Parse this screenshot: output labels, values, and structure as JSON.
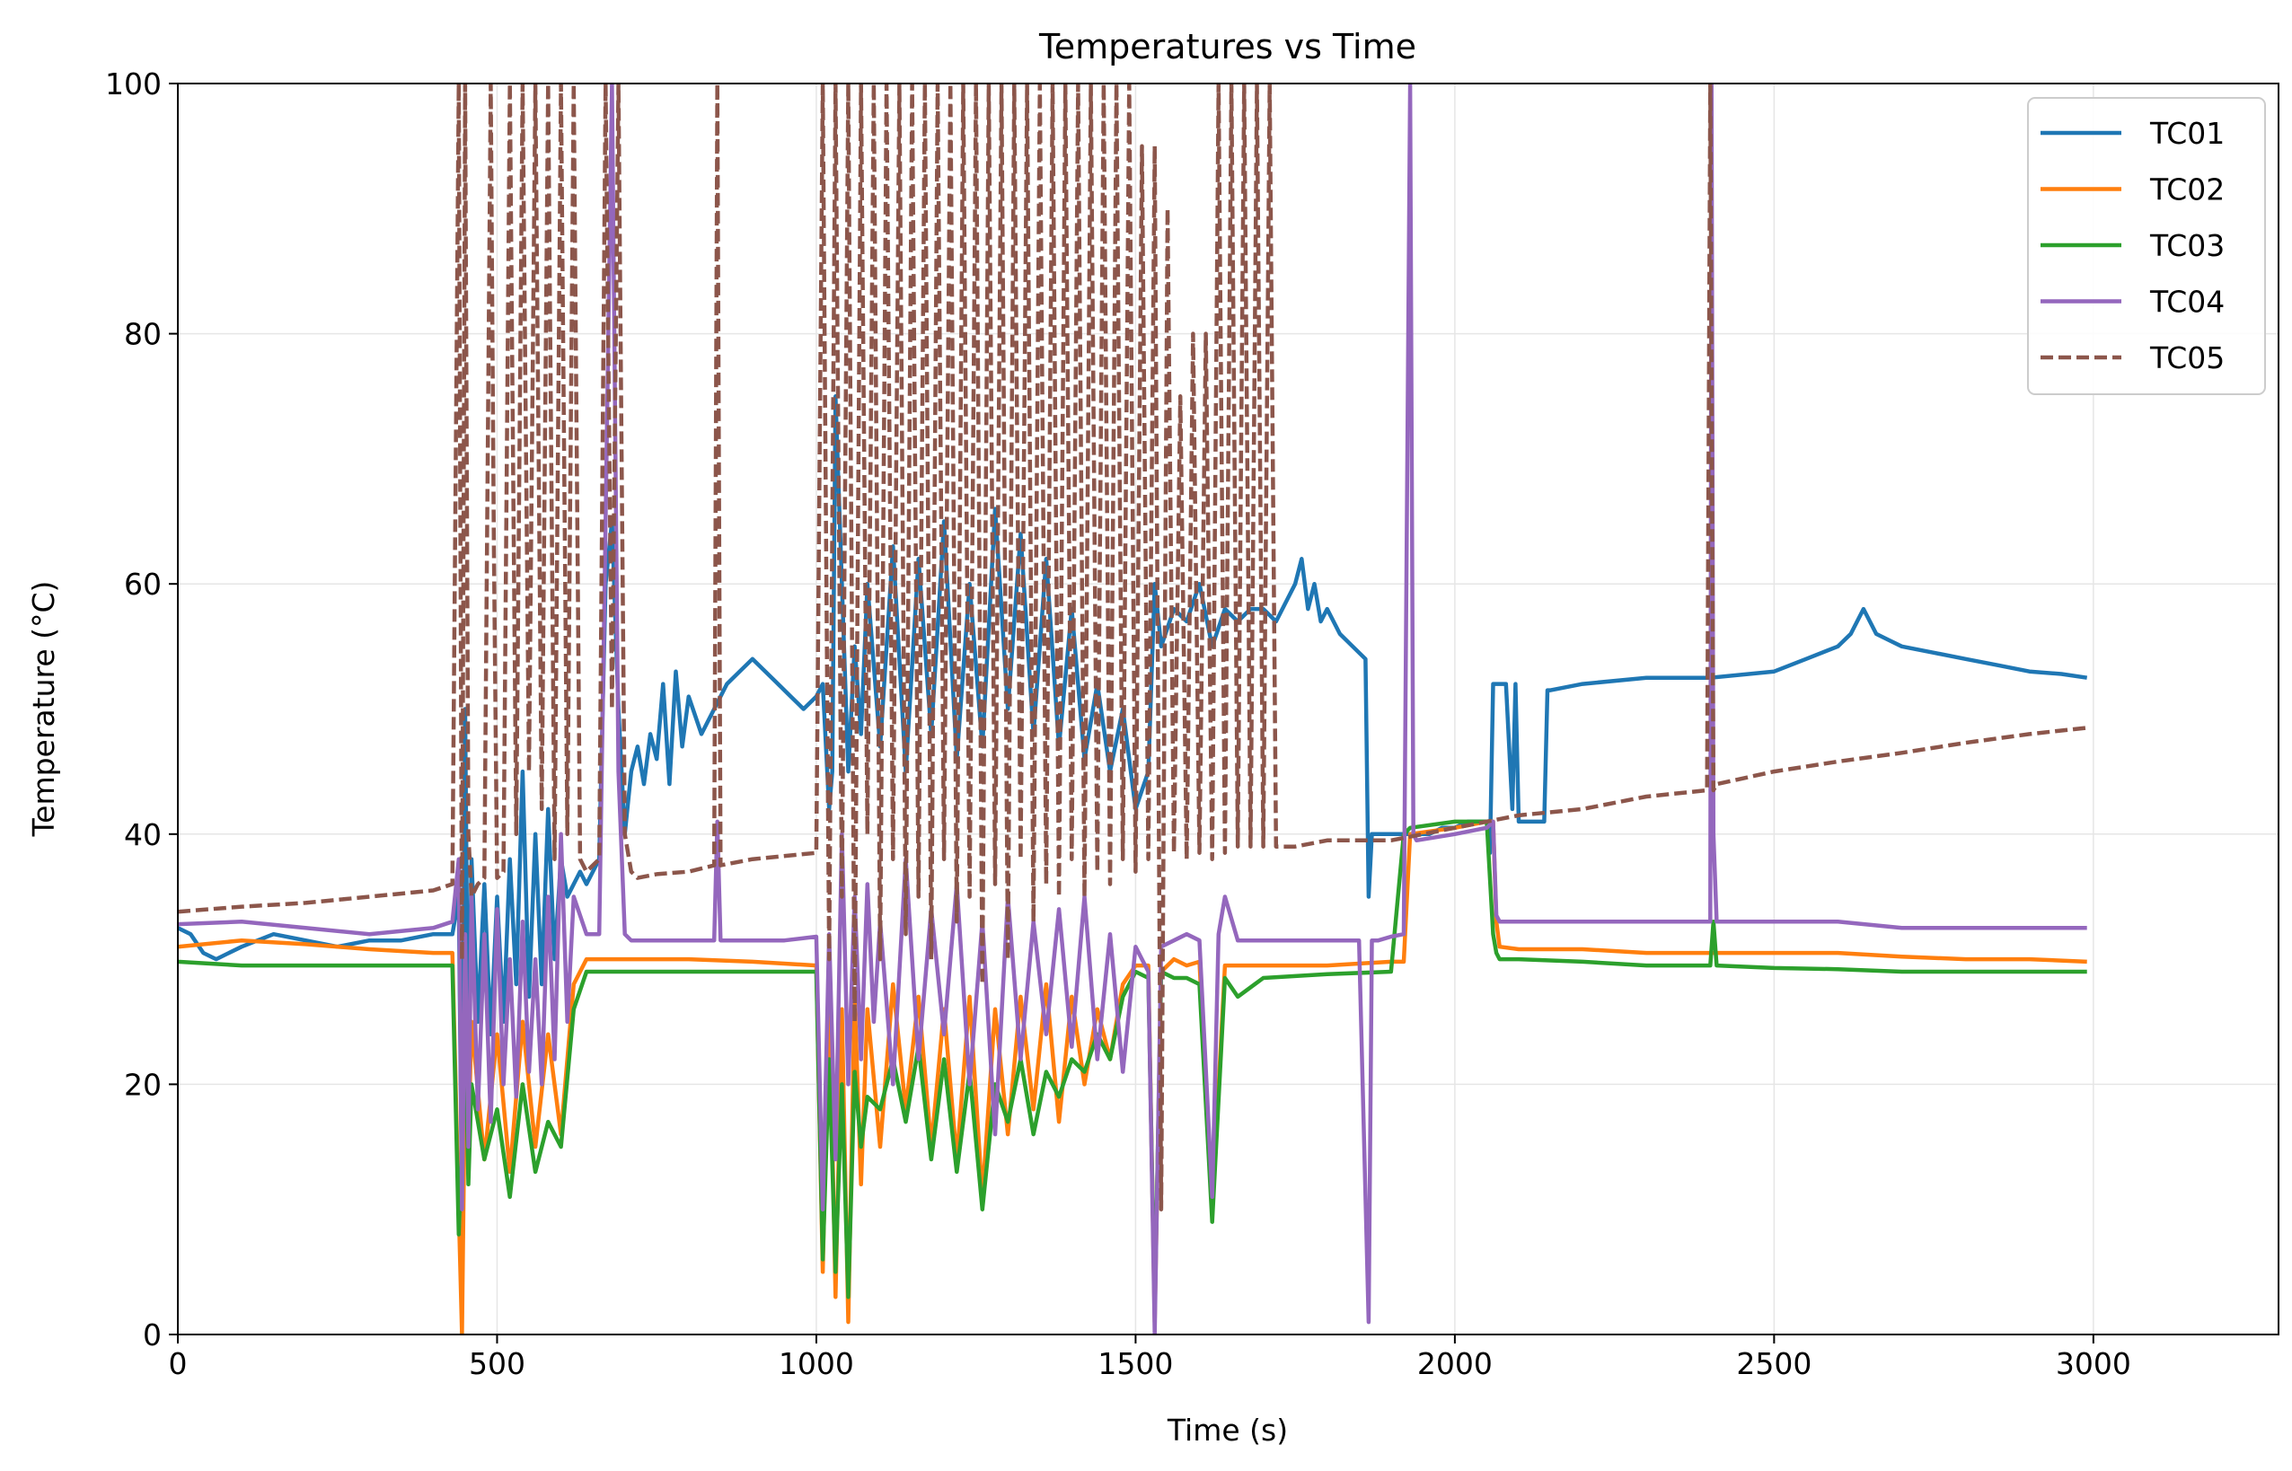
{
  "chart_data": {
    "type": "line",
    "title": "Temperatures vs Time",
    "xlabel": "Time (s)",
    "ylabel": "Temperature (°C)",
    "xlim": [
      0,
      3290
    ],
    "ylim": [
      0,
      100
    ],
    "xticks": [
      0,
      500,
      1000,
      1500,
      2000,
      2500,
      3000
    ],
    "yticks": [
      0,
      20,
      40,
      60,
      80,
      100
    ],
    "grid": true,
    "legend_position": "top-right",
    "series": [
      {
        "name": "TC01",
        "color": "#1f77b4",
        "dash": "solid",
        "x": [
          0,
          20,
          40,
          60,
          80,
          100,
          150,
          200,
          250,
          300,
          350,
          400,
          430,
          440,
          445,
          450,
          455,
          460,
          470,
          480,
          490,
          500,
          510,
          520,
          530,
          540,
          550,
          560,
          570,
          580,
          590,
          600,
          610,
          620,
          630,
          640,
          650,
          660,
          670,
          680,
          690,
          700,
          710,
          720,
          730,
          740,
          750,
          760,
          770,
          780,
          790,
          800,
          820,
          840,
          860,
          880,
          900,
          920,
          940,
          960,
          980,
          1000,
          1010,
          1020,
          1025,
          1030,
          1040,
          1050,
          1060,
          1070,
          1080,
          1100,
          1120,
          1140,
          1160,
          1180,
          1200,
          1220,
          1240,
          1260,
          1280,
          1300,
          1320,
          1340,
          1360,
          1380,
          1400,
          1420,
          1440,
          1460,
          1480,
          1500,
          1520,
          1530,
          1540,
          1560,
          1580,
          1600,
          1620,
          1640,
          1660,
          1680,
          1700,
          1720,
          1740,
          1750,
          1760,
          1770,
          1780,
          1790,
          1800,
          1820,
          1840,
          1860,
          1865,
          1870,
          1900,
          1920,
          1940,
          1960,
          1980,
          2000,
          2020,
          2040,
          2050,
          2055,
          2060,
          2080,
          2090,
          2095,
          2100,
          2120,
          2140,
          2145,
          2150,
          2200,
          2300,
          2400,
          2500,
          2550,
          2600,
          2620,
          2640,
          2650,
          2660,
          2680,
          2700,
          2750,
          2800,
          2850,
          2900,
          2950,
          2990
        ],
        "y": [
          32.5,
          32.0,
          30.5,
          30.0,
          30.5,
          31.0,
          32.0,
          31.5,
          31.0,
          31.5,
          31.5,
          32.0,
          32.0,
          35.0,
          10.0,
          50.0,
          20.0,
          38.0,
          25.0,
          36.0,
          24.0,
          35.0,
          25.0,
          38.0,
          28.0,
          45.0,
          27.0,
          40.0,
          28.0,
          42.0,
          30.0,
          38.0,
          35.0,
          36.0,
          37.0,
          36.0,
          37.0,
          38.0,
          60.0,
          65.0,
          50.0,
          40.0,
          45.0,
          47.0,
          44.0,
          48.0,
          46.0,
          52.0,
          44.0,
          53.0,
          47.0,
          51.0,
          48.0,
          50.0,
          52.0,
          53.0,
          54.0,
          53.0,
          52.0,
          51.0,
          50.0,
          51.0,
          52.0,
          42.0,
          45.0,
          75.0,
          60.0,
          45.0,
          55.0,
          48.0,
          60.0,
          47.0,
          63.0,
          45.0,
          62.0,
          48.0,
          65.0,
          46.0,
          60.0,
          47.0,
          66.0,
          50.0,
          64.0,
          48.0,
          62.0,
          47.0,
          58.0,
          46.0,
          52.0,
          45.0,
          50.0,
          42.0,
          45.0,
          60.0,
          55.0,
          58.0,
          57.0,
          60.0,
          55.0,
          58.0,
          57.0,
          58.0,
          58.0,
          57.0,
          59.0,
          60.0,
          62.0,
          58.0,
          60.0,
          57.0,
          58.0,
          56.0,
          55.0,
          54.0,
          35.0,
          40.0,
          40.0,
          40.0,
          40.0,
          40.0,
          40.5,
          40.5,
          41.0,
          41.0,
          41.0,
          38.5,
          52.0,
          52.0,
          42.0,
          52.0,
          41.0,
          41.0,
          41.0,
          51.5,
          51.5,
          52.0,
          52.5,
          52.5,
          53.0,
          54.0,
          55.0,
          56.0,
          58.0,
          57.0,
          56.0,
          55.5,
          55.0,
          54.5,
          54.0,
          53.5,
          53.0,
          52.8,
          52.5
        ]
      },
      {
        "name": "TC02",
        "color": "#ff7f0e",
        "dash": "solid",
        "x": [
          0,
          100,
          200,
          300,
          400,
          430,
          440,
          445,
          450,
          455,
          460,
          480,
          500,
          520,
          540,
          560,
          580,
          600,
          620,
          640,
          660,
          680,
          700,
          750,
          800,
          900,
          1000,
          1010,
          1020,
          1030,
          1040,
          1050,
          1060,
          1070,
          1080,
          1100,
          1120,
          1140,
          1160,
          1180,
          1200,
          1220,
          1240,
          1260,
          1280,
          1300,
          1320,
          1340,
          1360,
          1380,
          1400,
          1420,
          1440,
          1460,
          1480,
          1500,
          1520,
          1530,
          1540,
          1560,
          1580,
          1600,
          1620,
          1640,
          1700,
          1800,
          1900,
          1920,
          1930,
          2000,
          2050,
          2060,
          2065,
          2070,
          2100,
          2200,
          2300,
          2400,
          2500,
          2600,
          2700,
          2800,
          2900,
          2990
        ],
        "y": [
          31.0,
          31.5,
          31.2,
          30.8,
          30.5,
          30.5,
          10.0,
          0.0,
          22.0,
          15.0,
          25.0,
          14.0,
          24.0,
          13.0,
          25.0,
          15.0,
          24.0,
          16.0,
          28.0,
          30.0,
          30.0,
          30.0,
          30.0,
          30.0,
          30.0,
          29.8,
          29.5,
          5.0,
          28.0,
          3.0,
          26.0,
          1.0,
          27.0,
          12.0,
          26.0,
          15.0,
          28.0,
          18.0,
          27.0,
          15.0,
          26.0,
          14.0,
          27.0,
          11.0,
          26.0,
          16.0,
          27.0,
          18.0,
          28.0,
          17.0,
          27.0,
          20.0,
          26.0,
          22.0,
          28.0,
          29.5,
          29.5,
          1.0,
          29.0,
          30.0,
          29.5,
          29.8,
          10.0,
          29.5,
          29.5,
          29.5,
          29.8,
          29.8,
          40.0,
          40.5,
          41.0,
          41.0,
          33.0,
          31.0,
          30.8,
          30.8,
          30.5,
          30.5,
          30.5,
          30.5,
          30.2,
          30.0,
          30.0,
          29.8
        ]
      },
      {
        "name": "TC03",
        "color": "#2ca02c",
        "dash": "solid",
        "x": [
          0,
          100,
          200,
          300,
          400,
          430,
          440,
          445,
          450,
          455,
          460,
          480,
          500,
          520,
          540,
          560,
          580,
          600,
          620,
          640,
          660,
          680,
          700,
          750,
          800,
          900,
          1000,
          1010,
          1020,
          1030,
          1040,
          1050,
          1060,
          1070,
          1080,
          1100,
          1120,
          1140,
          1160,
          1180,
          1200,
          1220,
          1240,
          1260,
          1280,
          1300,
          1320,
          1340,
          1360,
          1380,
          1400,
          1420,
          1440,
          1460,
          1480,
          1500,
          1520,
          1530,
          1540,
          1560,
          1580,
          1600,
          1620,
          1640,
          1660,
          1700,
          1800,
          1900,
          1920,
          1930,
          2000,
          2050,
          2060,
          2065,
          2070,
          2100,
          2200,
          2300,
          2400,
          2405,
          2410,
          2500,
          2600,
          2700,
          2800,
          2900,
          2990
        ],
        "y": [
          29.8,
          29.5,
          29.5,
          29.5,
          29.5,
          29.5,
          8.0,
          15.0,
          25.0,
          12.0,
          20.0,
          14.0,
          18.0,
          11.0,
          20.0,
          13.0,
          17.0,
          15.0,
          26.0,
          29.0,
          29.0,
          29.0,
          29.0,
          29.0,
          29.0,
          29.0,
          29.0,
          6.0,
          22.0,
          5.0,
          20.0,
          3.0,
          21.0,
          15.0,
          19.0,
          18.0,
          22.0,
          17.0,
          23.0,
          14.0,
          22.0,
          13.0,
          21.0,
          10.0,
          20.0,
          17.0,
          22.0,
          16.0,
          21.0,
          19.0,
          22.0,
          21.0,
          24.0,
          22.0,
          27.0,
          29.0,
          28.5,
          2.0,
          29.0,
          28.5,
          28.5,
          28.0,
          9.0,
          28.5,
          27.0,
          28.5,
          28.8,
          29.0,
          40.0,
          40.5,
          41.0,
          41.0,
          32.0,
          30.5,
          30.0,
          30.0,
          29.8,
          29.5,
          29.5,
          33.0,
          29.5,
          29.3,
          29.2,
          29.0,
          29.0,
          29.0,
          29.0
        ]
      },
      {
        "name": "TC04",
        "color": "#9467bd",
        "dash": "solid",
        "x": [
          0,
          100,
          200,
          300,
          400,
          430,
          440,
          445,
          450,
          455,
          460,
          470,
          480,
          490,
          500,
          510,
          520,
          530,
          540,
          550,
          560,
          570,
          580,
          590,
          600,
          610,
          620,
          640,
          660,
          670,
          680,
          690,
          700,
          710,
          720,
          750,
          800,
          840,
          845,
          850,
          900,
          950,
          1000,
          1010,
          1020,
          1030,
          1040,
          1050,
          1060,
          1070,
          1080,
          1090,
          1100,
          1120,
          1140,
          1160,
          1180,
          1200,
          1220,
          1240,
          1260,
          1280,
          1300,
          1320,
          1340,
          1360,
          1380,
          1400,
          1420,
          1440,
          1460,
          1480,
          1500,
          1520,
          1530,
          1540,
          1560,
          1580,
          1600,
          1620,
          1630,
          1640,
          1660,
          1700,
          1750,
          1800,
          1850,
          1865,
          1870,
          1880,
          1900,
          1920,
          1930,
          1935,
          1940,
          2000,
          2050,
          2060,
          2065,
          2070,
          2100,
          2200,
          2300,
          2400,
          2402,
          2405,
          2410,
          2500,
          2550,
          2600,
          2700,
          2800,
          2900,
          2990
        ],
        "y": [
          32.8,
          33.0,
          32.5,
          32.0,
          32.5,
          33.0,
          38.0,
          10.0,
          32.0,
          15.0,
          35.0,
          18.0,
          32.0,
          17.0,
          34.0,
          20.0,
          30.0,
          19.0,
          33.0,
          21.0,
          30.0,
          20.0,
          35.0,
          22.0,
          40.0,
          25.0,
          35.0,
          32.0,
          32.0,
          65.0,
          100.0,
          45.0,
          32.0,
          31.5,
          31.5,
          31.5,
          31.5,
          31.5,
          41.0,
          31.5,
          31.5,
          31.5,
          31.8,
          10.0,
          32.0,
          14.0,
          40.0,
          20.0,
          35.0,
          22.0,
          36.0,
          25.0,
          33.0,
          20.0,
          38.0,
          22.0,
          34.0,
          24.0,
          36.0,
          20.0,
          33.0,
          16.0,
          35.0,
          22.0,
          33.0,
          24.0,
          34.0,
          23.0,
          35.0,
          22.0,
          32.0,
          21.0,
          31.0,
          29.0,
          0.0,
          31.0,
          31.5,
          32.0,
          31.5,
          11.0,
          32.0,
          35.0,
          31.5,
          31.5,
          31.5,
          31.5,
          31.5,
          1.0,
          31.5,
          31.5,
          31.8,
          32.0,
          100.0,
          40.0,
          39.5,
          40.0,
          40.5,
          41.0,
          33.5,
          33.0,
          33.0,
          33.0,
          33.0,
          33.0,
          100.0,
          40.0,
          33.0,
          33.0,
          33.0,
          33.0,
          32.5,
          32.5,
          32.5,
          32.5
        ]
      },
      {
        "name": "TC05",
        "color": "#8c564b",
        "dash": "dashed",
        "x": [
          0,
          100,
          200,
          300,
          400,
          430,
          440,
          445,
          450,
          455,
          460,
          470,
          480,
          490,
          495,
          500,
          510,
          520,
          530,
          540,
          550,
          560,
          570,
          580,
          590,
          600,
          610,
          620,
          630,
          640,
          650,
          660,
          670,
          680,
          690,
          700,
          710,
          720,
          750,
          800,
          840,
          845,
          850,
          900,
          1000,
          1010,
          1020,
          1030,
          1040,
          1050,
          1060,
          1070,
          1080,
          1090,
          1100,
          1110,
          1120,
          1130,
          1140,
          1150,
          1160,
          1170,
          1180,
          1190,
          1200,
          1210,
          1220,
          1230,
          1240,
          1250,
          1260,
          1270,
          1280,
          1290,
          1300,
          1310,
          1320,
          1330,
          1340,
          1350,
          1360,
          1370,
          1380,
          1390,
          1400,
          1410,
          1420,
          1430,
          1440,
          1450,
          1460,
          1470,
          1480,
          1490,
          1500,
          1510,
          1520,
          1530,
          1540,
          1550,
          1560,
          1570,
          1580,
          1590,
          1600,
          1610,
          1620,
          1630,
          1640,
          1650,
          1660,
          1670,
          1680,
          1690,
          1700,
          1710,
          1720,
          1750,
          1800,
          1900,
          2000,
          2100,
          2200,
          2300,
          2395,
          2400,
          2405,
          2410,
          2500,
          2600,
          2700,
          2800,
          2900,
          2990
        ],
        "y": [
          33.8,
          34.2,
          34.5,
          35.0,
          35.5,
          36.0,
          100.0,
          30.0,
          100.0,
          40.0,
          35.0,
          36.0,
          36.5,
          100.0,
          63.0,
          36.5,
          37.0,
          100.0,
          40.0,
          100.0,
          45.0,
          100.0,
          42.0,
          100.0,
          38.0,
          100.0,
          40.0,
          100.0,
          38.0,
          37.0,
          37.5,
          38.0,
          100.0,
          50.0,
          100.0,
          40.0,
          37.0,
          36.5,
          36.8,
          37.0,
          37.5,
          100.0,
          37.5,
          38.0,
          38.5,
          100.0,
          30.0,
          100.0,
          35.0,
          100.0,
          25.0,
          100.0,
          40.0,
          100.0,
          30.0,
          100.0,
          38.0,
          100.0,
          32.0,
          100.0,
          35.0,
          100.0,
          30.0,
          100.0,
          38.0,
          100.0,
          33.0,
          100.0,
          35.0,
          100.0,
          28.0,
          100.0,
          36.0,
          100.0,
          30.0,
          100.0,
          38.0,
          100.0,
          33.0,
          100.0,
          36.0,
          100.0,
          35.0,
          100.0,
          38.0,
          100.0,
          35.0,
          100.0,
          37.0,
          100.0,
          36.0,
          100.0,
          38.0,
          100.0,
          37.0,
          95.0,
          38.0,
          95.0,
          10.0,
          90.0,
          38.5,
          75.0,
          38.0,
          80.0,
          38.5,
          80.0,
          38.0,
          100.0,
          38.5,
          100.0,
          39.0,
          100.0,
          39.0,
          100.0,
          39.0,
          100.0,
          39.0,
          39.0,
          39.5,
          39.5,
          40.5,
          41.5,
          42.0,
          43.0,
          43.5,
          100.0,
          43.5,
          44.0,
          45.0,
          45.8,
          46.5,
          47.3,
          48.0,
          48.5
        ]
      }
    ]
  }
}
